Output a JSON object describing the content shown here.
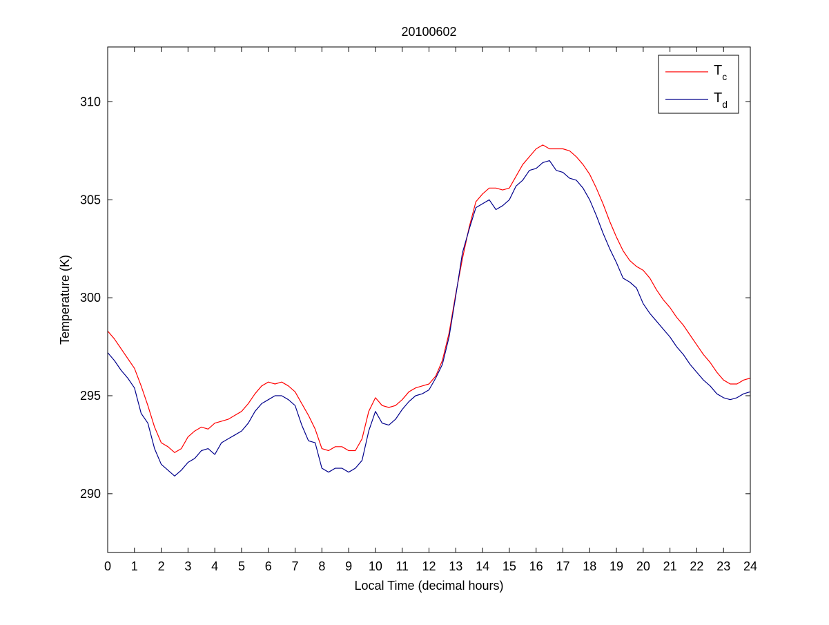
{
  "chart_data": {
    "type": "line",
    "title": "20100602",
    "xlabel": "Local Time (decimal hours)",
    "ylabel": "Temperature (K)",
    "xlim": [
      0,
      24
    ],
    "ylim": [
      287,
      312.8
    ],
    "xticks": [
      0,
      1,
      2,
      3,
      4,
      5,
      6,
      7,
      8,
      9,
      10,
      11,
      12,
      13,
      14,
      15,
      16,
      17,
      18,
      19,
      20,
      21,
      22,
      23,
      24
    ],
    "yticks": [
      290,
      295,
      300,
      305,
      310
    ],
    "grid": false,
    "legend_position": "top-right",
    "series": [
      {
        "name": "T",
        "name_subscript": "c",
        "color": "#ff0000",
        "x": [
          0,
          0.25,
          0.5,
          0.75,
          1.0,
          1.25,
          1.5,
          1.75,
          2.0,
          2.25,
          2.5,
          2.75,
          3.0,
          3.25,
          3.5,
          3.75,
          4.0,
          4.25,
          4.5,
          4.75,
          5.0,
          5.25,
          5.5,
          5.75,
          6.0,
          6.25,
          6.5,
          6.75,
          7.0,
          7.25,
          7.5,
          7.75,
          8.0,
          8.25,
          8.5,
          8.75,
          9.0,
          9.25,
          9.5,
          9.75,
          10.0,
          10.25,
          10.5,
          10.75,
          11.0,
          11.25,
          11.5,
          11.75,
          12.0,
          12.25,
          12.5,
          12.75,
          13.0,
          13.25,
          13.5,
          13.75,
          14.0,
          14.25,
          14.5,
          14.75,
          15.0,
          15.25,
          15.5,
          15.75,
          16.0,
          16.25,
          16.5,
          16.75,
          17.0,
          17.25,
          17.5,
          17.75,
          18.0,
          18.25,
          18.5,
          18.75,
          19.0,
          19.25,
          19.5,
          19.75,
          20.0,
          20.25,
          20.5,
          20.75,
          21.0,
          21.25,
          21.5,
          21.75,
          22.0,
          22.25,
          22.5,
          22.75,
          23.0,
          23.25,
          23.5,
          23.75,
          24.0
        ],
        "values": [
          298.3,
          297.9,
          297.4,
          296.9,
          296.4,
          295.5,
          294.5,
          293.4,
          292.6,
          292.4,
          292.1,
          292.3,
          292.9,
          293.2,
          293.4,
          293.3,
          293.6,
          293.7,
          293.8,
          294.0,
          294.2,
          294.6,
          295.1,
          295.5,
          295.7,
          295.6,
          295.7,
          295.5,
          295.2,
          294.6,
          294.0,
          293.3,
          292.3,
          292.2,
          292.4,
          292.4,
          292.2,
          292.2,
          292.8,
          294.2,
          294.9,
          294.5,
          294.4,
          294.5,
          294.8,
          295.2,
          295.4,
          295.5,
          295.6,
          296.0,
          296.8,
          298.2,
          300.2,
          302.0,
          303.6,
          304.9,
          305.3,
          305.6,
          305.6,
          305.5,
          305.6,
          306.2,
          306.8,
          307.2,
          307.6,
          307.8,
          307.6,
          307.6,
          307.6,
          307.5,
          307.2,
          306.8,
          306.3,
          305.6,
          304.8,
          303.9,
          303.1,
          302.4,
          301.9,
          301.6,
          301.4,
          301.0,
          300.4,
          299.9,
          299.5,
          299.0,
          298.6,
          298.1,
          297.6,
          297.1,
          296.7,
          296.2,
          295.8,
          295.6,
          295.6,
          295.8,
          295.9
        ]
      },
      {
        "name": "T",
        "name_subscript": "d",
        "color": "#00008b",
        "x": [
          0,
          0.25,
          0.5,
          0.75,
          1.0,
          1.25,
          1.5,
          1.75,
          2.0,
          2.25,
          2.5,
          2.75,
          3.0,
          3.25,
          3.5,
          3.75,
          4.0,
          4.25,
          4.5,
          4.75,
          5.0,
          5.25,
          5.5,
          5.75,
          6.0,
          6.25,
          6.5,
          6.75,
          7.0,
          7.25,
          7.5,
          7.75,
          8.0,
          8.25,
          8.5,
          8.75,
          9.0,
          9.25,
          9.5,
          9.75,
          10.0,
          10.25,
          10.5,
          10.75,
          11.0,
          11.25,
          11.5,
          11.75,
          12.0,
          12.25,
          12.5,
          12.75,
          13.0,
          13.25,
          13.5,
          13.75,
          14.0,
          14.25,
          14.5,
          14.75,
          15.0,
          15.25,
          15.5,
          15.75,
          16.0,
          16.25,
          16.5,
          16.75,
          17.0,
          17.25,
          17.5,
          17.75,
          18.0,
          18.25,
          18.5,
          18.75,
          19.0,
          19.25,
          19.5,
          19.75,
          20.0,
          20.25,
          20.5,
          20.75,
          21.0,
          21.25,
          21.5,
          21.75,
          22.0,
          22.25,
          22.5,
          22.75,
          23.0,
          23.25,
          23.5,
          23.75,
          24.0
        ],
        "values": [
          297.2,
          296.8,
          296.3,
          295.9,
          295.4,
          294.1,
          293.6,
          292.3,
          291.5,
          291.2,
          290.9,
          291.2,
          291.6,
          291.8,
          292.2,
          292.3,
          292.0,
          292.6,
          292.8,
          293.0,
          293.2,
          293.6,
          294.2,
          294.6,
          294.8,
          295.0,
          295.0,
          294.8,
          294.5,
          293.5,
          292.7,
          292.6,
          291.3,
          291.1,
          291.3,
          291.3,
          291.1,
          291.3,
          291.7,
          293.2,
          294.2,
          293.6,
          293.5,
          293.8,
          294.3,
          294.7,
          295.0,
          295.1,
          295.3,
          295.9,
          296.6,
          298.0,
          300.1,
          302.3,
          303.5,
          304.6,
          304.8,
          305.0,
          304.5,
          304.7,
          305.0,
          305.7,
          306.0,
          306.5,
          306.6,
          306.9,
          307.0,
          306.5,
          306.4,
          306.1,
          306.0,
          305.6,
          305.0,
          304.2,
          303.3,
          302.5,
          301.8,
          301.0,
          300.8,
          300.5,
          299.7,
          299.2,
          298.8,
          298.4,
          298.0,
          297.5,
          297.1,
          296.6,
          296.2,
          295.8,
          295.5,
          295.1,
          294.9,
          294.8,
          294.9,
          295.1,
          295.2
        ]
      }
    ]
  }
}
